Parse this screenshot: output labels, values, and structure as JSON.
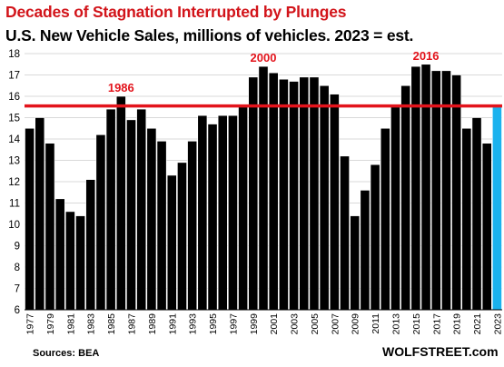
{
  "title": "Decades of Stagnation  Interrupted by Plunges",
  "subtitle": "U.S. New Vehicle Sales, millions  of vehicles. 2023 = est.",
  "source": "Sources: BEA",
  "brand": "WOLFSTREET.com",
  "colors": {
    "title": "#d2141a",
    "bar": "#000000",
    "estimate_bar": "#1ab2ee",
    "reference_line": "#e3141c",
    "grid": "#d9d9d9"
  },
  "chart_data": {
    "type": "bar",
    "categories": [
      "1977",
      "1978",
      "1979",
      "1980",
      "1981",
      "1982",
      "1983",
      "1984",
      "1985",
      "1986",
      "1987",
      "1988",
      "1989",
      "1990",
      "1991",
      "1992",
      "1993",
      "1994",
      "1995",
      "1996",
      "1997",
      "1998",
      "1999",
      "2000",
      "2001",
      "2002",
      "2003",
      "2004",
      "2005",
      "2006",
      "2007",
      "2008",
      "2009",
      "2010",
      "2011",
      "2012",
      "2013",
      "2014",
      "2015",
      "2016",
      "2017",
      "2018",
      "2019",
      "2020",
      "2021",
      "2022",
      "2023"
    ],
    "values": [
      14.5,
      15.0,
      13.8,
      11.2,
      10.6,
      10.4,
      12.1,
      14.2,
      15.4,
      16.0,
      14.9,
      15.4,
      14.5,
      13.9,
      12.3,
      12.9,
      13.9,
      15.1,
      14.7,
      15.1,
      15.1,
      15.5,
      16.9,
      17.4,
      17.1,
      16.8,
      16.7,
      16.9,
      16.9,
      16.5,
      16.1,
      13.2,
      10.4,
      11.6,
      12.8,
      14.5,
      15.5,
      16.5,
      17.4,
      17.5,
      17.2,
      17.2,
      17.0,
      14.5,
      15.0,
      13.8,
      15.5
    ],
    "highlight_index": 46,
    "ylim": [
      6,
      18
    ],
    "yticks": [
      6,
      7,
      8,
      9,
      10,
      11,
      12,
      13,
      14,
      15,
      16,
      17,
      18
    ],
    "xtick_labels": [
      "1977",
      "1979",
      "1981",
      "1983",
      "1985",
      "1987",
      "1989",
      "1991",
      "1993",
      "1995",
      "1997",
      "1999",
      "2001",
      "2003",
      "2005",
      "2007",
      "2009",
      "2011",
      "2013",
      "2015",
      "2017",
      "2019",
      "2021",
      "2023"
    ],
    "reference_line": 15.55,
    "annotations": [
      {
        "text": "1986",
        "category": "1986"
      },
      {
        "text": "2000",
        "category": "2000"
      },
      {
        "text": "2016",
        "category": "2016"
      }
    ],
    "grid": true
  }
}
